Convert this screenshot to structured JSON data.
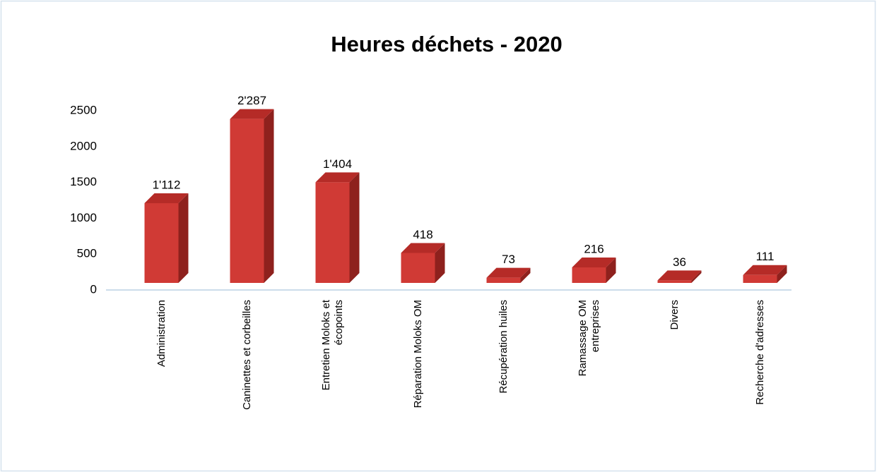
{
  "chart_data": {
    "type": "bar3d",
    "title": "Heures déchets - 2020",
    "categories": [
      "Administration",
      "Caninettes et corbeilles",
      "Entretien Moloks et\nécopoints",
      "Réparation Moloks OM",
      "Récupération huiles",
      "Ramassage OM\nentreprises",
      "Divers",
      "Recherche d'adresses"
    ],
    "values": [
      1112,
      2287,
      1404,
      418,
      73,
      216,
      36,
      111
    ],
    "value_labels": [
      "1'112",
      "2'287",
      "1'404",
      "418",
      "73",
      "216",
      "36",
      "111"
    ],
    "color": "#d03a35",
    "ylim": [
      0,
      2500
    ],
    "yticks": [
      0,
      500,
      1000,
      1500,
      2000,
      2500
    ],
    "grid": false
  }
}
